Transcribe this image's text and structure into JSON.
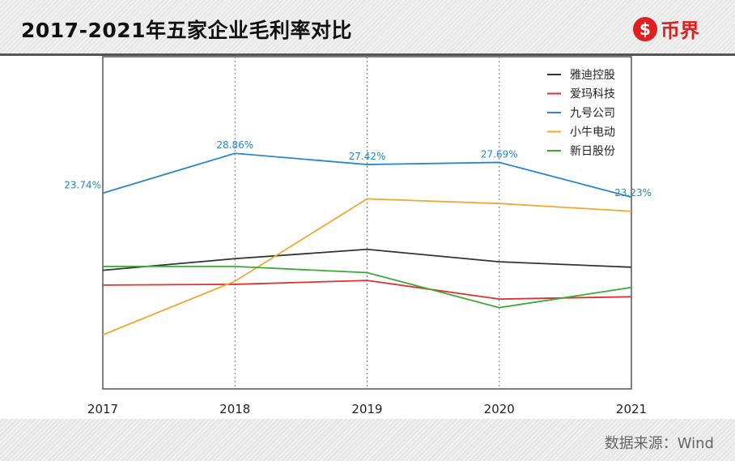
{
  "header": {
    "title": "2017-2021年五家企业毛利率对比",
    "logo_text": "币界",
    "logo_symbol": "$"
  },
  "footer": {
    "source": "数据来源：Wind"
  },
  "chart_data": {
    "type": "line",
    "title": "2017-2021年五家企业毛利率对比",
    "categories": [
      "2017",
      "2018",
      "2019",
      "2020",
      "2021"
    ],
    "ylim": [
      0,
      30
    ],
    "y_axis_labels_shown": false,
    "grid": "vertical dotted",
    "legend": "top-right",
    "series": [
      {
        "name": "雅迪控股",
        "color": "#333333",
        "values": [
          13.8,
          15.3,
          16.5,
          14.9,
          14.2
        ]
      },
      {
        "name": "爱玛科技",
        "color": "#e03030",
        "values": [
          11.9,
          12.0,
          12.5,
          10.1,
          10.4
        ]
      },
      {
        "name": "九号公司",
        "color": "#2a88c8",
        "values": [
          23.74,
          28.86,
          27.42,
          27.69,
          23.23
        ],
        "labels": [
          "23.74%",
          "28.86%",
          "27.42%",
          "27.69%",
          "23.23%"
        ]
      },
      {
        "name": "小牛电动",
        "color": "#f0a830",
        "values": [
          5.5,
          12.4,
          23.0,
          22.4,
          21.4
        ]
      },
      {
        "name": "新日股份",
        "color": "#3aaa35",
        "values": [
          14.3,
          14.3,
          13.5,
          9.0,
          11.6
        ]
      }
    ]
  }
}
